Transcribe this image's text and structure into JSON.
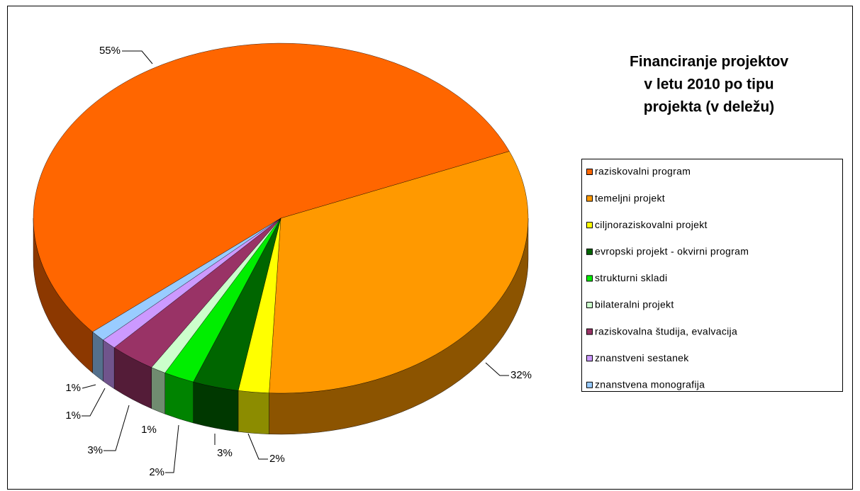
{
  "chart_data": {
    "type": "pie",
    "title": [
      "Financiranje projektov",
      "v letu 2010 po tipu",
      "projekta (v deležu)"
    ],
    "categories": [
      "raziskovalni program",
      "temeljni projekt",
      "ciljnoraziskovalni projekt",
      "evropski projekt - okvirni program",
      "strukturni skladi",
      "bilateralni projekt",
      "raziskovalna študija, evalvacija",
      "znanstveni sestanek",
      "znanstvena monografija"
    ],
    "values": [
      55,
      32,
      2,
      3,
      2,
      1,
      3,
      1,
      1
    ],
    "value_labels": [
      "55%",
      "32%",
      "2%",
      "3%",
      "2%",
      "1%",
      "3%",
      "1%",
      "1%"
    ],
    "colors": [
      "#ff6600",
      "#ff9900",
      "#ffff00",
      "#006600",
      "#00ee00",
      "#ccffcc",
      "#993366",
      "#cc99ff",
      "#99ccff"
    ],
    "legend": "right"
  }
}
